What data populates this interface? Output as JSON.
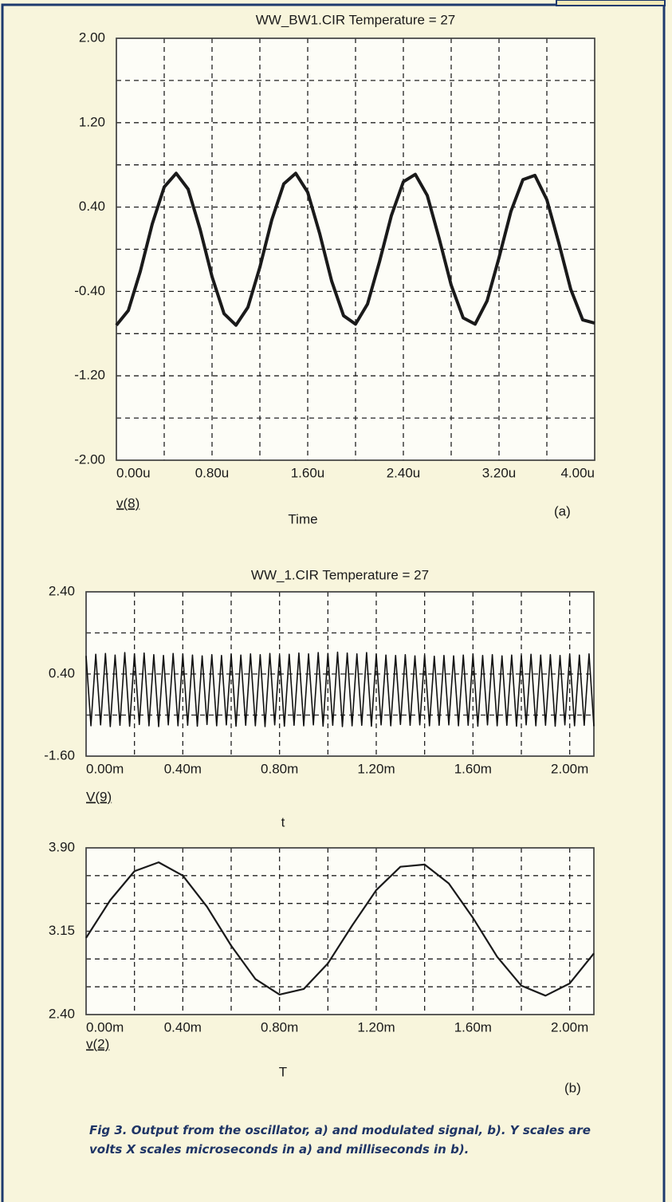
{
  "chart_data": [
    {
      "type": "line",
      "title": "WW_BW1.CIR Temperature = 27",
      "xlabel": "Time",
      "x": [
        0,
        0.1,
        0.2,
        0.3,
        0.4,
        0.5,
        0.6,
        0.7,
        0.8,
        0.9,
        1.0,
        1.1,
        1.2,
        1.3,
        1.4,
        1.5,
        1.6,
        1.7,
        1.8,
        1.9,
        2.0,
        2.1,
        2.2,
        2.3,
        2.4,
        2.5,
        2.6,
        2.7,
        2.8,
        2.9,
        3.0,
        3.1,
        3.2,
        3.3,
        3.4,
        3.5,
        3.6,
        3.7,
        3.8,
        3.9,
        4.0
      ],
      "series": [
        {
          "name": "v(8)",
          "color": "#1a1a1a",
          "values": [
            -0.72,
            -0.58,
            -0.21,
            0.24,
            0.59,
            0.72,
            0.57,
            0.19,
            -0.26,
            -0.61,
            -0.72,
            -0.55,
            -0.17,
            0.28,
            0.62,
            0.72,
            0.54,
            0.15,
            -0.3,
            -0.63,
            -0.71,
            -0.52,
            -0.12,
            0.32,
            0.64,
            0.71,
            0.51,
            0.1,
            -0.34,
            -0.65,
            -0.71,
            -0.49,
            -0.08,
            0.36,
            0.66,
            0.7,
            0.47,
            0.06,
            -0.38,
            -0.67,
            -0.7
          ]
        }
      ],
      "xlim": [
        0,
        4.0
      ],
      "xticks": [
        {
          "value": 0,
          "label": "0.00u"
        },
        {
          "value": 0.8,
          "label": "0.80u"
        },
        {
          "value": 1.6,
          "label": "1.60u"
        },
        {
          "value": 2.4,
          "label": "2.40u"
        },
        {
          "value": 3.2,
          "label": "3.20u"
        },
        {
          "value": 4.0,
          "label": "4.00u"
        }
      ],
      "ylim": [
        -2.0,
        2.0
      ],
      "yticks": [
        {
          "value": 2.0,
          "label": "2.00"
        },
        {
          "value": 1.2,
          "label": "1.20"
        },
        {
          "value": 0.4,
          "label": "0.40"
        },
        {
          "value": -0.4,
          "label": "-0.40"
        },
        {
          "value": -1.2,
          "label": "-1.20"
        },
        {
          "value": -2.0,
          "label": "-2.00"
        }
      ],
      "xgrid": [
        0.4,
        1.2,
        2.0,
        2.8,
        3.6
      ],
      "ygrid": [
        1.6,
        0.8,
        0,
        -0.8,
        -1.6
      ],
      "grid": true
    },
    {
      "type": "line",
      "title": "WW_1.CIR Temperature = 27",
      "xlabel": "t",
      "x": [
        0,
        0.02,
        0.04,
        0.06,
        0.08,
        0.1,
        0.12,
        0.14,
        0.16,
        0.18,
        0.2,
        0.22,
        0.24,
        0.26,
        0.28,
        0.3,
        0.32,
        0.34,
        0.36,
        0.38,
        0.4,
        0.42,
        0.44,
        0.46,
        0.48,
        0.5,
        0.52,
        0.54,
        0.56,
        0.58,
        0.6,
        0.62,
        0.64,
        0.66,
        0.68,
        0.7,
        0.72,
        0.74,
        0.76,
        0.78,
        0.8,
        0.82,
        0.84,
        0.86,
        0.88,
        0.9,
        0.92,
        0.94,
        0.96,
        0.98,
        1.0,
        1.02,
        1.04,
        1.06,
        1.08,
        1.1,
        1.12,
        1.14,
        1.16,
        1.18,
        1.2,
        1.22,
        1.24,
        1.26,
        1.28,
        1.3,
        1.32,
        1.34,
        1.36,
        1.38,
        1.4,
        1.42,
        1.44,
        1.46,
        1.48,
        1.5,
        1.52,
        1.54,
        1.56,
        1.58,
        1.6,
        1.62,
        1.64,
        1.66,
        1.68,
        1.7,
        1.72,
        1.74,
        1.76,
        1.78,
        1.8,
        1.82,
        1.84,
        1.86,
        1.88,
        1.9,
        1.92,
        1.94,
        1.96,
        1.98,
        2.0,
        2.02,
        2.04,
        2.06,
        2.08,
        2.1
      ],
      "series": [
        {
          "name": "V(9)",
          "color": "#111111",
          "values": [
            0.84,
            -0.86,
            0.88,
            -0.84,
            0.9,
            -0.88,
            0.86,
            -0.85,
            0.92,
            -0.87,
            0.89,
            -0.83,
            0.91,
            -0.86,
            0.87,
            -0.88,
            0.85,
            -0.84,
            0.9,
            -0.86,
            0.88,
            -0.85,
            0.86,
            -0.87,
            0.84,
            -0.83,
            0.87,
            -0.86,
            0.85,
            -0.84,
            0.88,
            -0.87,
            0.86,
            -0.85,
            0.89,
            -0.86,
            0.87,
            -0.88,
            0.9,
            -0.84,
            0.86,
            -0.87,
            0.88,
            -0.85,
            0.91,
            -0.86,
            0.89,
            -0.84,
            0.92,
            -0.87,
            0.9,
            -0.85,
            0.93,
            -0.88,
            0.91,
            -0.86,
            0.89,
            -0.85,
            0.92,
            -0.87,
            0.88,
            -0.84,
            0.86,
            -0.86,
            0.85,
            -0.83,
            0.87,
            -0.85,
            0.84,
            -0.84,
            0.86,
            -0.86,
            0.83,
            -0.85,
            0.85,
            -0.84,
            0.84,
            -0.86,
            0.86,
            -0.85,
            0.88,
            -0.87,
            0.85,
            -0.84,
            0.87,
            -0.86,
            0.84,
            -0.85,
            0.86,
            -0.87,
            0.85,
            -0.84,
            0.88,
            -0.86,
            0.86,
            -0.85,
            0.87,
            -0.87,
            0.85,
            -0.84,
            0.88,
            -0.86,
            0.86,
            -0.85,
            0.89,
            -0.87
          ]
        }
      ],
      "xlim": [
        0,
        2.1
      ],
      "xticks": [
        {
          "value": 0,
          "label": "0.00m"
        },
        {
          "value": 0.4,
          "label": "0.40m"
        },
        {
          "value": 0.8,
          "label": "0.80m"
        },
        {
          "value": 1.2,
          "label": "1.20m"
        },
        {
          "value": 1.6,
          "label": "1.60m"
        },
        {
          "value": 2.0,
          "label": "2.00m"
        }
      ],
      "ylim": [
        -1.6,
        2.4
      ],
      "yticks": [
        {
          "value": 2.4,
          "label": "2.40"
        },
        {
          "value": 0.4,
          "label": "0.40"
        },
        {
          "value": -1.6,
          "label": "-1.60"
        }
      ],
      "xgrid": [
        0.2,
        0.6,
        1.0,
        1.4,
        1.8
      ],
      "ygrid": [
        1.4,
        -0.6
      ],
      "grid": true
    },
    {
      "type": "line",
      "xlabel": "T",
      "x": [
        0,
        0.1,
        0.2,
        0.3,
        0.4,
        0.5,
        0.6,
        0.7,
        0.8,
        0.9,
        1.0,
        1.1,
        1.2,
        1.3,
        1.4,
        1.5,
        1.6,
        1.7,
        1.8,
        1.9,
        2.0,
        2.1
      ],
      "series": [
        {
          "name": "v(2)",
          "color": "#1a1a1a",
          "values": [
            3.09,
            3.43,
            3.69,
            3.77,
            3.65,
            3.37,
            3.02,
            2.72,
            2.58,
            2.63,
            2.86,
            3.2,
            3.52,
            3.73,
            3.75,
            3.58,
            3.27,
            2.92,
            2.66,
            2.57,
            2.68,
            2.95
          ]
        }
      ],
      "xlim": [
        0,
        2.1
      ],
      "xticks": [
        {
          "value": 0,
          "label": "0.00m"
        },
        {
          "value": 0.4,
          "label": "0.40m"
        },
        {
          "value": 0.8,
          "label": "0.80m"
        },
        {
          "value": 1.2,
          "label": "1.20m"
        },
        {
          "value": 1.6,
          "label": "1.60m"
        },
        {
          "value": 2.0,
          "label": "2.00m"
        }
      ],
      "ylim": [
        2.4,
        3.9
      ],
      "yticks": [
        {
          "value": 3.9,
          "label": "3.90"
        },
        {
          "value": 3.15,
          "label": "3.15"
        },
        {
          "value": 2.4,
          "label": "2.40"
        }
      ],
      "xgrid": [
        0.2,
        0.6,
        1.0,
        1.4,
        1.8
      ],
      "ygrid": [
        3.65,
        3.4,
        2.9,
        2.65
      ],
      "grid": true
    }
  ],
  "panel_labels": [
    "(a)",
    "(b)"
  ],
  "caption": "Fig 3. Output from the oscillator, a) and modulated signal, b). Y scales are volts X scales microseconds in a) and milliseconds in b)."
}
